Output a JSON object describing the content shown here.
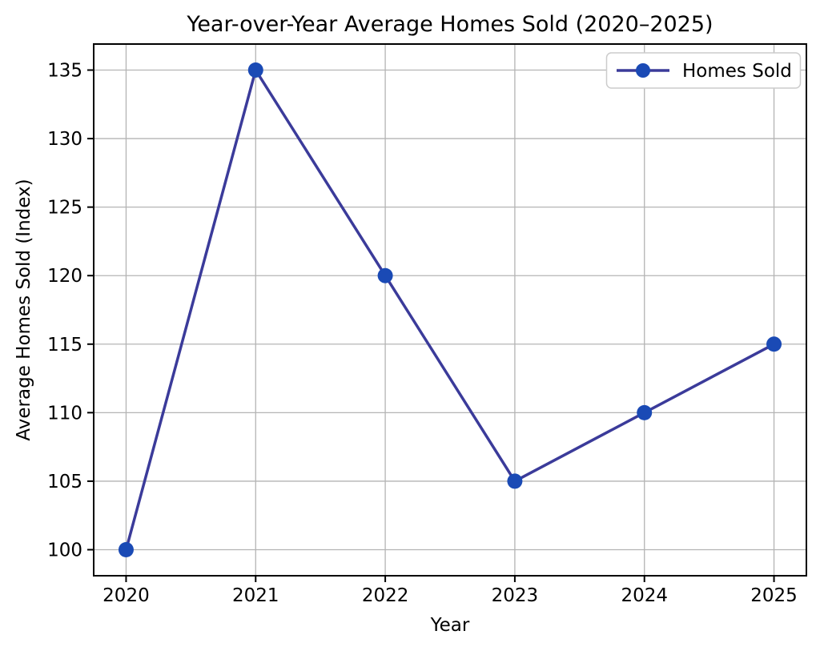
{
  "figure": {
    "background": "#ffffff"
  },
  "chart_data": {
    "type": "line",
    "title": "Year-over-Year Average Homes Sold (2020–2025)",
    "xlabel": "Year",
    "ylabel": "Average Homes Sold (Index)",
    "categories": [
      "2020",
      "2021",
      "2022",
      "2023",
      "2024",
      "2025"
    ],
    "series": [
      {
        "name": "Homes Sold",
        "values": [
          100,
          135,
          120,
          105,
          110,
          115
        ]
      }
    ],
    "yticks": [
      100,
      105,
      110,
      115,
      120,
      125,
      130,
      135
    ],
    "ylim": [
      98.1,
      136.9
    ],
    "xlim_pad_years": 0.25,
    "grid": true,
    "legend_position": "upper right",
    "colors": {
      "line": "#3b3b9a",
      "marker": "#1a4ab5",
      "grid": "#b4b4b4",
      "spine": "#000000",
      "tick": "#000000",
      "text": "#000000",
      "legend_border": "#cccccc",
      "legend_bg": "#ffffff"
    }
  }
}
